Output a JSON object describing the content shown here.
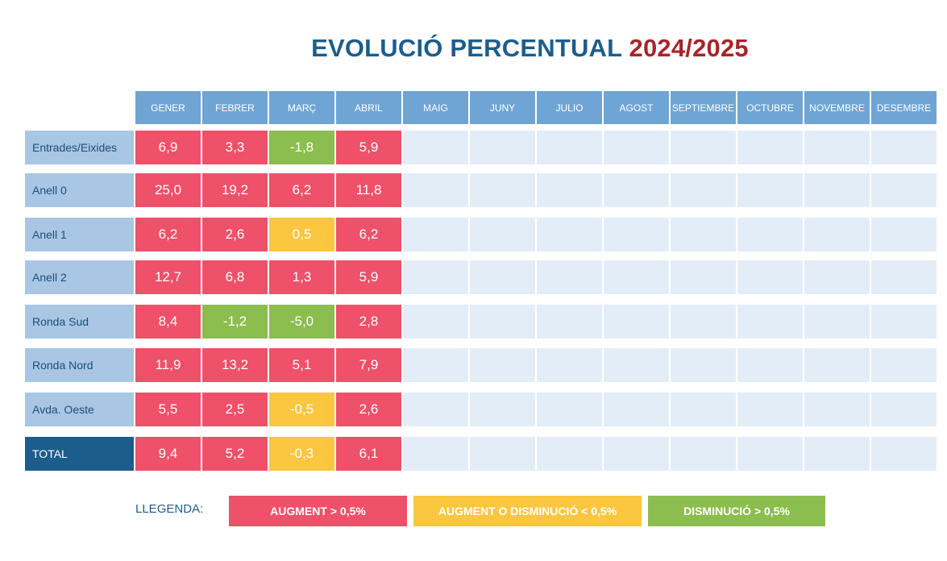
{
  "title": {
    "main": "EVOLUCIÓ PERCENTUAL",
    "year": "2024/2025"
  },
  "colors": {
    "augment": "#ee5169",
    "near_zero": "#fbc640",
    "disminucio": "#8cbd4f",
    "empty": "#e3edf8"
  },
  "chart_data": {
    "type": "table",
    "columns": [
      "GENER",
      "FEBRER",
      "MARÇ",
      "ABRIL",
      "MAIG",
      "JUNY",
      "JULIO",
      "AGOST",
      "SEPTIEMBRE",
      "OCTUBRE",
      "NOVEMBRE",
      "DESEMBRE"
    ],
    "rows": [
      {
        "label": "Entrades/Eixides",
        "values": [
          "6,9",
          "3,3",
          "-1,8",
          "5,9"
        ],
        "status": [
          "augment",
          "augment",
          "disminucio",
          "augment"
        ]
      },
      {
        "label": "Anell 0",
        "values": [
          "25,0",
          "19,2",
          "6,2",
          "11,8"
        ],
        "status": [
          "augment",
          "augment",
          "augment",
          "augment"
        ]
      },
      {
        "label": "Anell 1",
        "values": [
          "6,2",
          "2,6",
          "0,5",
          "6,2"
        ],
        "status": [
          "augment",
          "augment",
          "near_zero",
          "augment"
        ]
      },
      {
        "label": "Anell 2",
        "values": [
          "12,7",
          "6,8",
          "1,3",
          "5,9"
        ],
        "status": [
          "augment",
          "augment",
          "augment",
          "augment"
        ]
      },
      {
        "label": "Ronda Sud",
        "values": [
          "8,4",
          "-1,2",
          "-5,0",
          "2,8"
        ],
        "status": [
          "augment",
          "disminucio",
          "disminucio",
          "augment"
        ]
      },
      {
        "label": "Ronda Nord",
        "values": [
          "11,9",
          "13,2",
          "5,1",
          "7,9"
        ],
        "status": [
          "augment",
          "augment",
          "augment",
          "augment"
        ]
      },
      {
        "label": "Avda. Oeste",
        "values": [
          "5,5",
          "2,5",
          "-0,5",
          "2,6"
        ],
        "status": [
          "augment",
          "augment",
          "near_zero",
          "augment"
        ]
      },
      {
        "label": "TOTAL",
        "values": [
          "9,4",
          "5,2",
          "-0,3",
          "6,1"
        ],
        "status": [
          "augment",
          "augment",
          "near_zero",
          "augment"
        ],
        "is_total": true
      }
    ]
  },
  "legend": {
    "label": "LLEGENDA:",
    "items": [
      {
        "text": "AUGMENT  > 0,5%",
        "status": "augment"
      },
      {
        "text": "AUGMENT O DISMINUCIÓ  < 0,5%",
        "status": "near_zero"
      },
      {
        "text": "DISMINUCIÓ  > 0,5%",
        "status": "disminucio"
      }
    ]
  }
}
